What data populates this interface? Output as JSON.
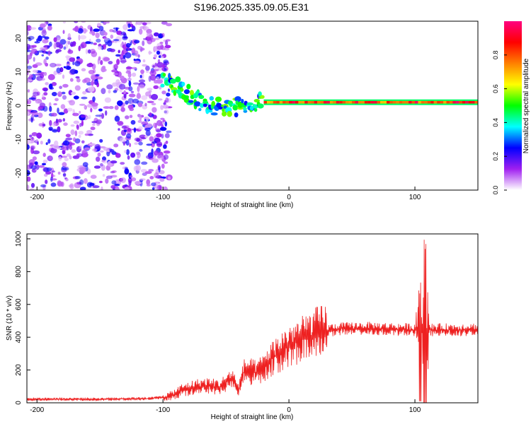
{
  "title": "S196.2025.335.09.05.E31",
  "colorbar": {
    "label": "Normalized spectral amplitude",
    "ticks": [
      "0.0",
      "0.2",
      "0.4",
      "0.6",
      "0.8"
    ],
    "range": [
      0,
      1
    ],
    "colors": [
      "#ffffff",
      "#a020f0",
      "#0000ff",
      "#00ffff",
      "#00ff00",
      "#ffff00",
      "#ff8000",
      "#ff0000",
      "#ff0080"
    ]
  },
  "chart_data": [
    {
      "type": "heatmap",
      "xlabel": "Height of straight line (km)",
      "ylabel": "Frequency (Hz)",
      "xlim": [
        -208,
        150
      ],
      "ylim": [
        -25,
        25
      ],
      "xticks": [
        -200,
        -100,
        0,
        100
      ],
      "xtick_labels": [
        "-200",
        "-100",
        "0",
        "100"
      ],
      "yticks": [
        -20,
        -10,
        0,
        10,
        20
      ],
      "ytick_labels": [
        "-20",
        "-10",
        "0",
        "10",
        "20"
      ],
      "features": [
        {
          "name": "diffuse noise",
          "x_range": [
            -208,
            -95
          ],
          "freq_range": [
            -25,
            25
          ],
          "amplitude": 0.15
        },
        {
          "name": "descending track",
          "points": [
            [
              -100,
              8
            ],
            [
              -90,
              6
            ],
            [
              -80,
              3
            ],
            [
              -70,
              1
            ],
            [
              -60,
              0
            ],
            [
              -50,
              -1
            ],
            [
              -40,
              0
            ],
            [
              -30,
              1
            ],
            [
              -20,
              1
            ]
          ],
          "amplitude": 0.45
        },
        {
          "name": "steady line",
          "x_range": [
            -20,
            150
          ],
          "freq": 1,
          "amplitude": 0.9
        }
      ]
    },
    {
      "type": "line",
      "xlabel": "Height of straight line (km)",
      "ylabel": "SNR (10 * v/v)",
      "xlim": [
        -208,
        150
      ],
      "ylim": [
        0,
        1030
      ],
      "xticks": [
        -200,
        -100,
        0,
        100
      ],
      "xtick_labels": [
        "-200",
        "-100",
        "0",
        "100"
      ],
      "yticks": [
        0,
        200,
        400,
        600,
        800,
        1000
      ],
      "ytick_labels": [
        "0",
        "200",
        "400",
        "600",
        "800",
        "1000"
      ],
      "color": "#ee2020",
      "envelope": [
        [
          -208,
          22
        ],
        [
          -150,
          22
        ],
        [
          -110,
          26
        ],
        [
          -95,
          38
        ],
        [
          -85,
          75
        ],
        [
          -75,
          95
        ],
        [
          -65,
          105
        ],
        [
          -55,
          95
        ],
        [
          -45,
          150
        ],
        [
          -40,
          80
        ],
        [
          -35,
          200
        ],
        [
          -25,
          180
        ],
        [
          -15,
          260
        ],
        [
          -5,
          320
        ],
        [
          0,
          350
        ],
        [
          10,
          380
        ],
        [
          20,
          420
        ],
        [
          30,
          440
        ],
        [
          40,
          450
        ],
        [
          60,
          455
        ],
        [
          80,
          450
        ],
        [
          100,
          445
        ],
        [
          103,
          430
        ],
        [
          108,
          445
        ],
        [
          130,
          445
        ],
        [
          150,
          448
        ]
      ],
      "spikes": [
        {
          "x": 104,
          "min": 10,
          "max": 780
        },
        {
          "x": 108,
          "min": 0,
          "max": 1030
        }
      ]
    }
  ]
}
